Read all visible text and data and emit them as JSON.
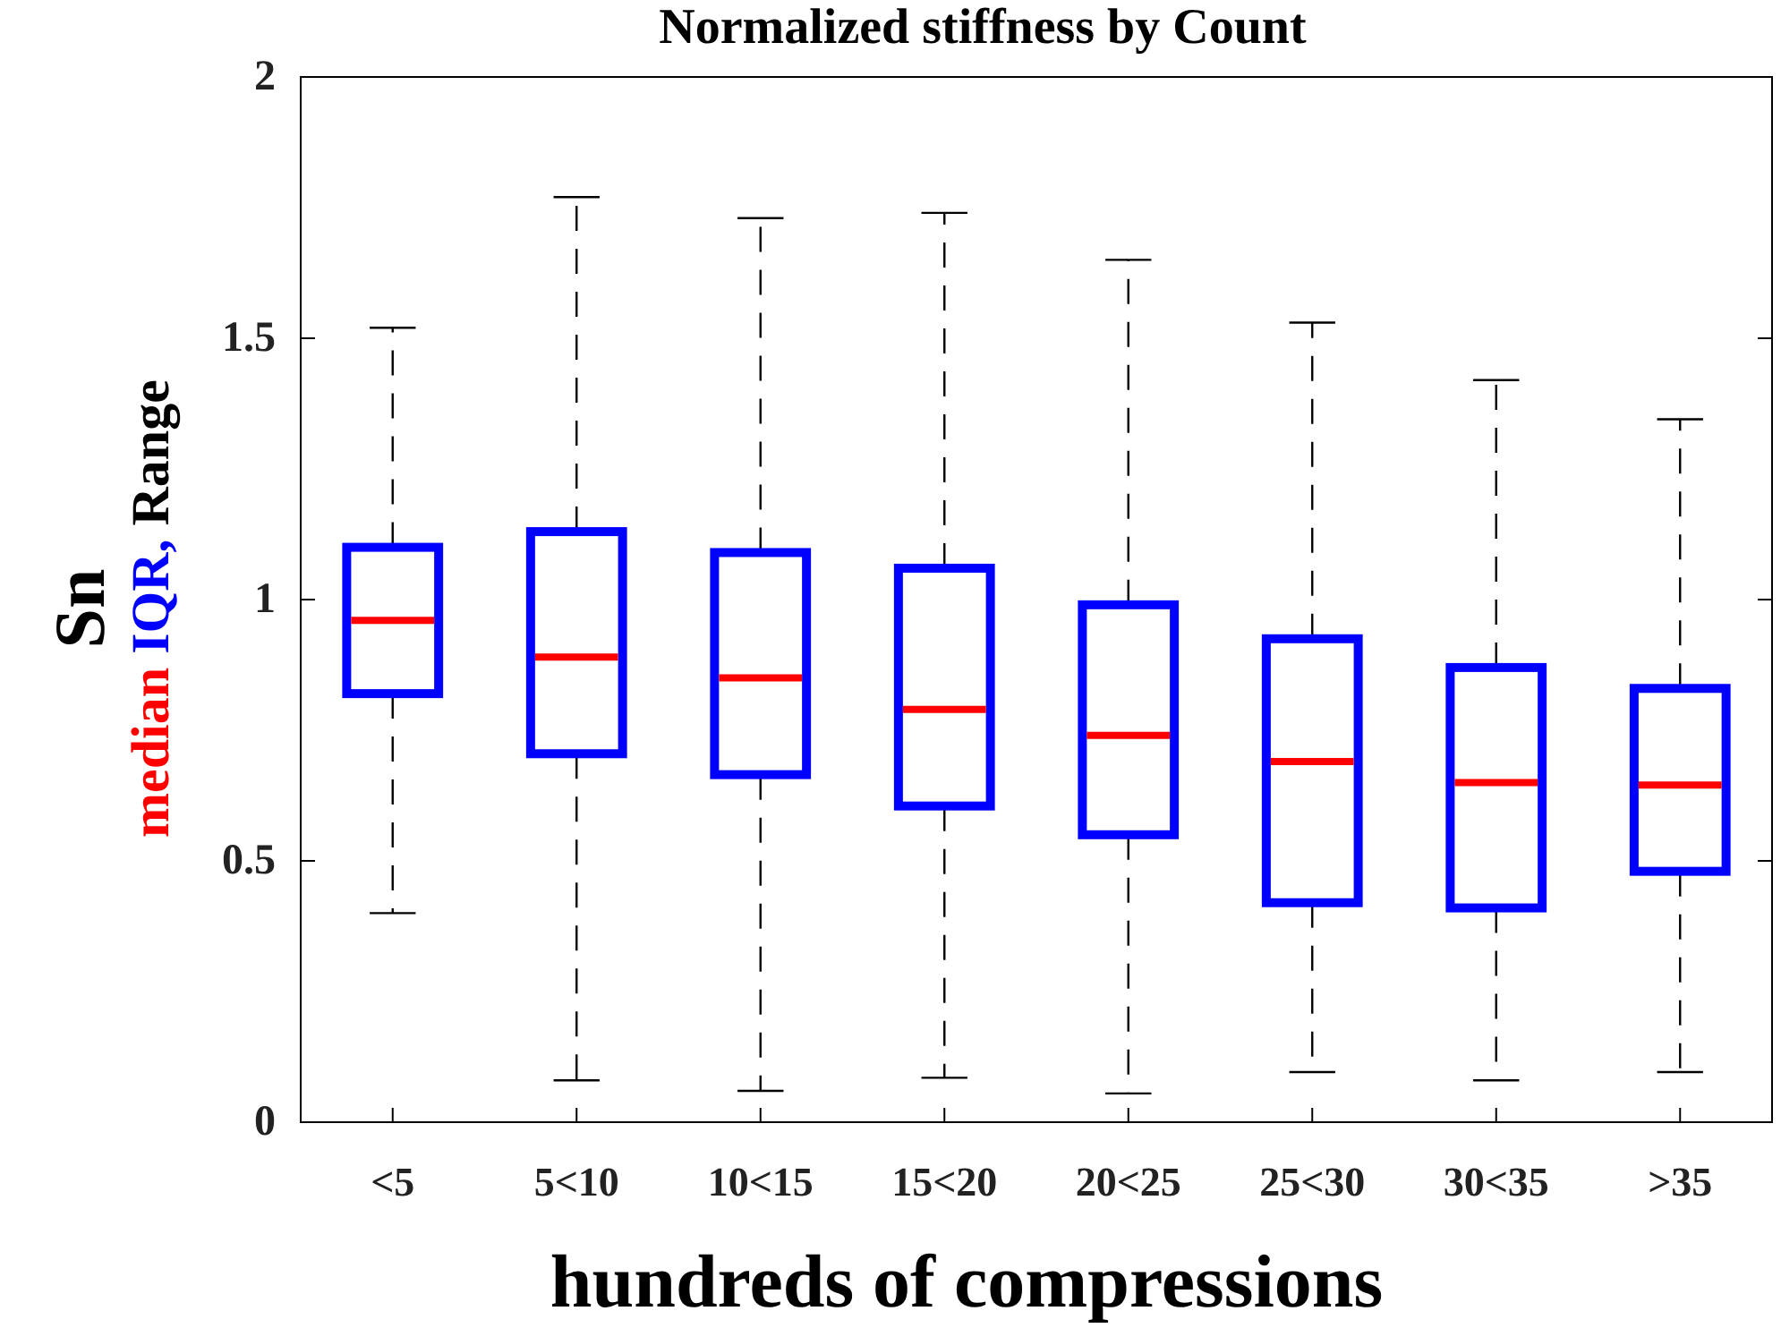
{
  "chart_data": {
    "type": "box",
    "title": "Normalized stiffness by Count",
    "xlabel": "hundreds of compressions",
    "ylabel": "Sn",
    "annotations": [
      "median",
      "IQR,",
      "Range"
    ],
    "categories": [
      "<5",
      "5<10",
      "10<15",
      "15<20",
      "20<25",
      "25<30",
      "30<35",
      ">35"
    ],
    "series": [
      {
        "color": "#0000ff",
        "boxes": [
          {
            "low": 0.4,
            "q1": 0.82,
            "median": 0.96,
            "q3": 1.1,
            "high": 1.52
          },
          {
            "low": 0.08,
            "q1": 0.705,
            "median": 0.89,
            "q3": 1.13,
            "high": 1.77
          },
          {
            "low": 0.06,
            "q1": 0.665,
            "median": 0.85,
            "q3": 1.09,
            "high": 1.73
          },
          {
            "low": 0.085,
            "q1": 0.605,
            "median": 0.79,
            "q3": 1.06,
            "high": 1.74
          },
          {
            "low": 0.055,
            "q1": 0.55,
            "median": 0.74,
            "q3": 0.99,
            "high": 1.65
          },
          {
            "low": 0.096,
            "q1": 0.42,
            "median": 0.69,
            "q3": 0.925,
            "high": 1.53
          },
          {
            "low": 0.08,
            "q1": 0.41,
            "median": 0.65,
            "q3": 0.87,
            "high": 1.42
          },
          {
            "low": 0.096,
            "q1": 0.48,
            "median": 0.645,
            "q3": 0.83,
            "high": 1.345
          }
        ]
      }
    ],
    "ylim": [
      0,
      2
    ],
    "yticks": [
      0,
      0.5,
      1,
      1.5,
      2
    ],
    "line_style": "dashed",
    "grid": false
  }
}
